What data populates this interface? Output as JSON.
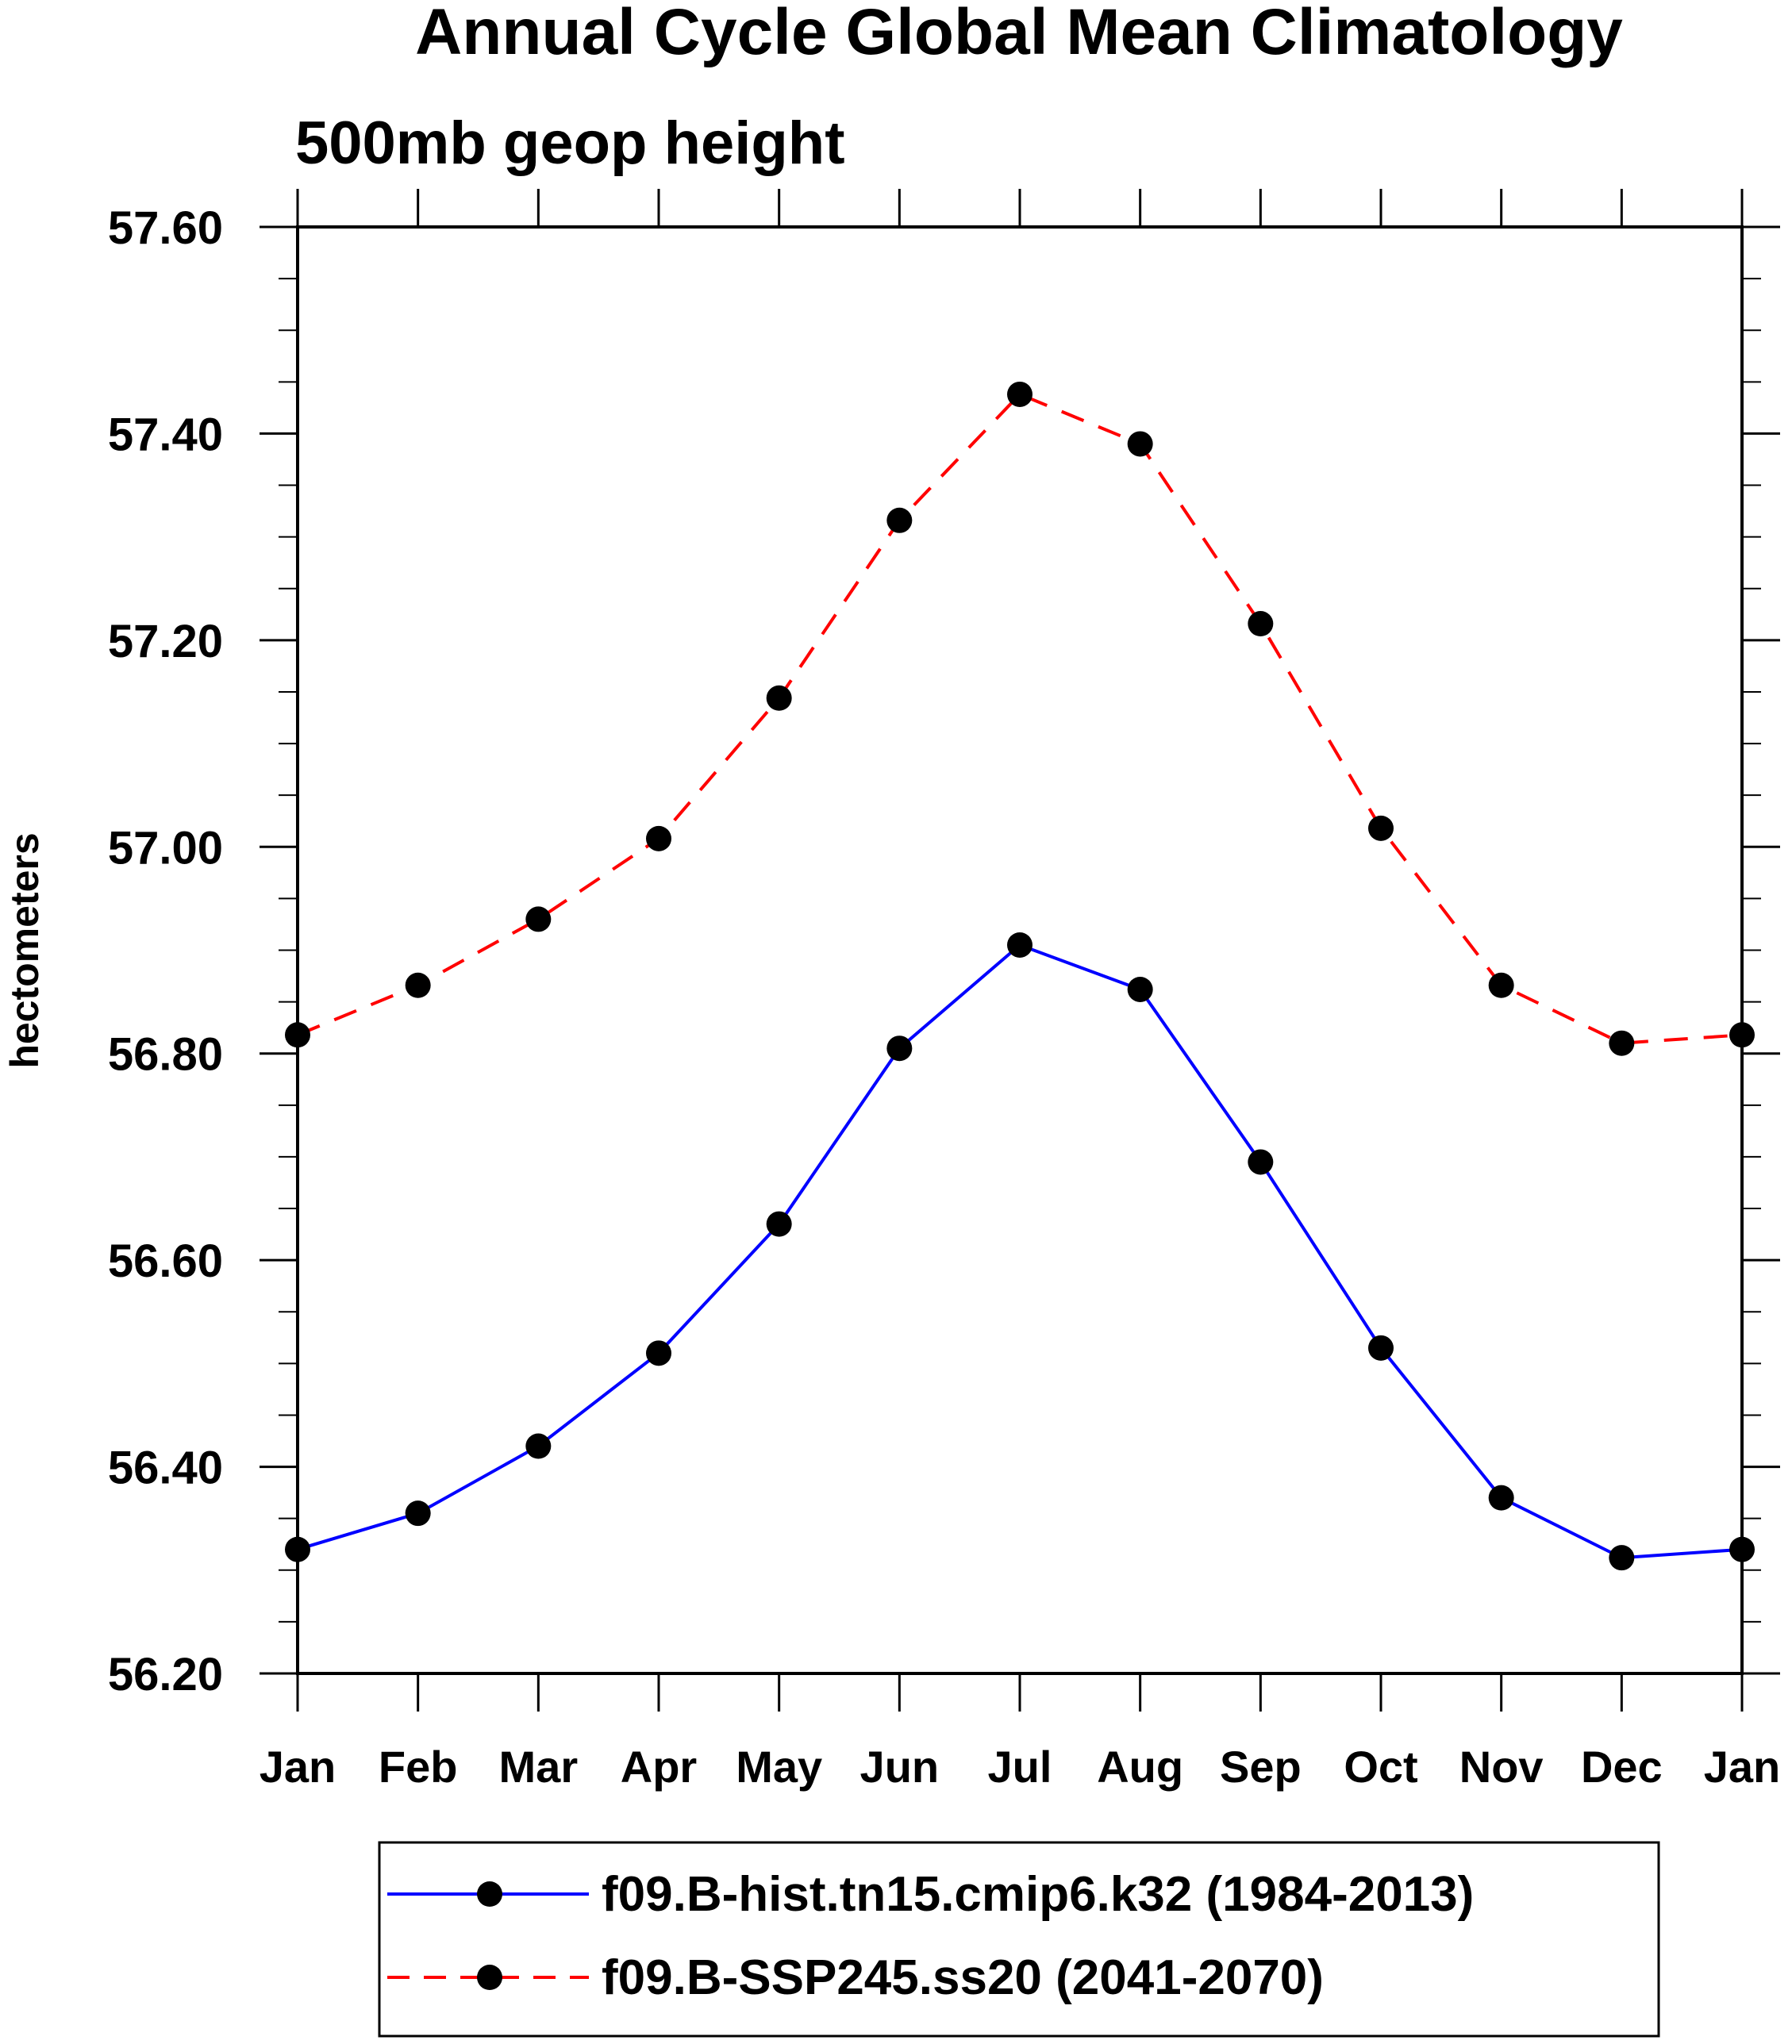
{
  "chart_data": {
    "type": "line",
    "title": "Annual Cycle Global Mean Climatology",
    "subtitle": "500mb geop height",
    "xlabel": "",
    "ylabel": "hectometers",
    "categories": [
      "Jan",
      "Feb",
      "Mar",
      "Apr",
      "May",
      "Jun",
      "Jul",
      "Aug",
      "Sep",
      "Oct",
      "Nov",
      "Dec",
      "Jan"
    ],
    "ylim": [
      56.2,
      57.6
    ],
    "yticks": [
      "56.20",
      "56.40",
      "56.60",
      "56.80",
      "57.00",
      "57.20",
      "57.40",
      "57.60"
    ],
    "ytick_values": [
      56.2,
      56.4,
      56.6,
      56.8,
      57.0,
      57.2,
      57.4,
      57.6
    ],
    "grid": false,
    "legend_position": "bottom",
    "series": [
      {
        "name": "f09.B-hist.tn15.cmip6.k32 (1984-2013)",
        "color": "#0000ff",
        "line_style": "solid",
        "marker": "filled-circle",
        "values": [
          56.32,
          56.355,
          56.42,
          56.51,
          56.635,
          56.805,
          56.905,
          56.862,
          56.695,
          56.515,
          56.37,
          56.312,
          56.32
        ]
      },
      {
        "name": "f09.B-SSP245.ss20 (2041-2070)",
        "color": "#ff0000",
        "line_style": "dashed",
        "marker": "filled-circle",
        "values": [
          56.818,
          56.866,
          56.93,
          57.008,
          57.144,
          57.316,
          57.438,
          57.39,
          57.216,
          57.018,
          56.866,
          56.81,
          56.818
        ]
      }
    ]
  }
}
